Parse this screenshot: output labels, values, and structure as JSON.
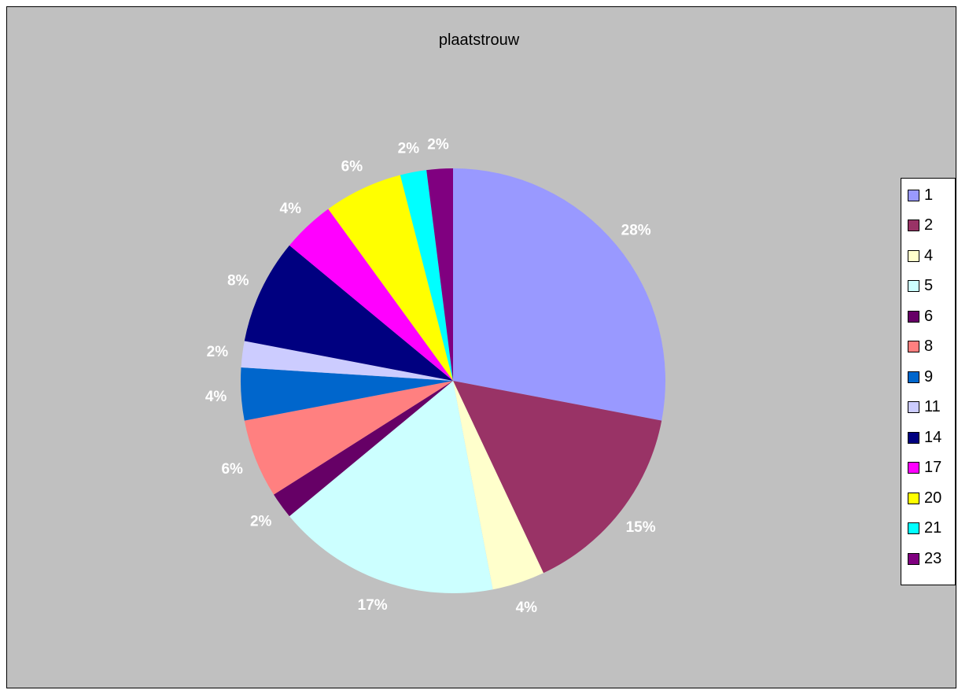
{
  "chart_data": {
    "type": "pie",
    "title": "plaatstrouw",
    "categories": [
      "1",
      "2",
      "4",
      "5",
      "6",
      "8",
      "9",
      "11",
      "14",
      "17",
      "20",
      "21",
      "23"
    ],
    "values": [
      28,
      15,
      4,
      17,
      2,
      6,
      4,
      2,
      8,
      4,
      6,
      2,
      2
    ],
    "labels": [
      "28%",
      "15%",
      "4%",
      "17%",
      "2%",
      "6%",
      "4%",
      "2%",
      "8%",
      "4%",
      "6%",
      "2%",
      "2%"
    ],
    "colors": [
      "#9999ff",
      "#993366",
      "#ffffcc",
      "#ccffff",
      "#660066",
      "#ff8080",
      "#0066cc",
      "#ccccff",
      "#000080",
      "#ff00ff",
      "#ffff00",
      "#00ffff",
      "#800080"
    ],
    "legend_position": "right",
    "background": "#c0c0c0"
  }
}
